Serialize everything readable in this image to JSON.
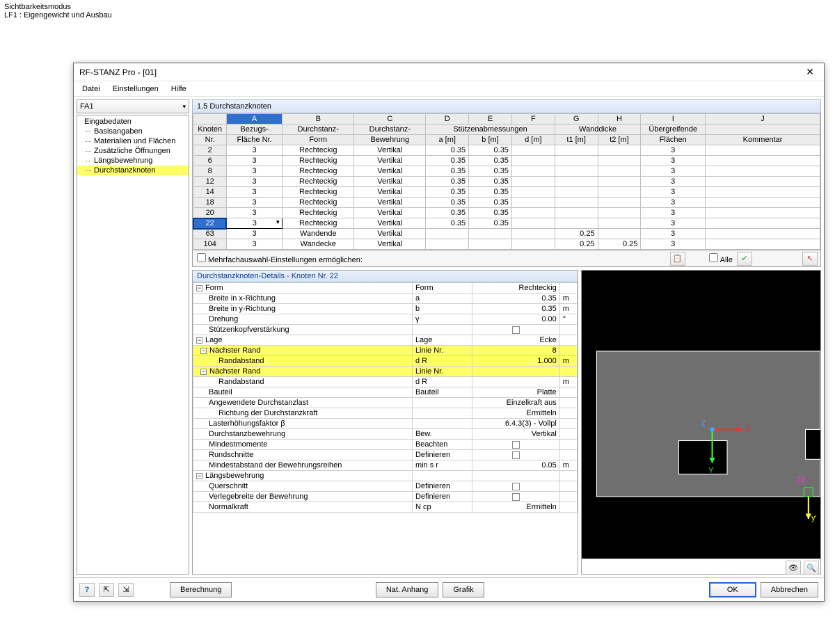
{
  "background": {
    "line1": "Sichtbarkeitsmodus",
    "line2": "LF1 : Eigengewicht und Ausbau"
  },
  "window_title": "RF-STANZ Pro - [01]",
  "menu": {
    "datei": "Datei",
    "einstellungen": "Einstellungen",
    "hilfe": "Hilfe"
  },
  "dropdown_label": "FA1",
  "tree": {
    "root": "Eingabedaten",
    "items": [
      "Basisangaben",
      "Materialien und Flächen",
      "Zusätzliche Öffnungen",
      "Längsbewehrung",
      "Durchstanzknoten"
    ],
    "highlight_index": 4
  },
  "section_title": "1.5 Durchstanzknoten",
  "grid": {
    "col_letters": [
      "A",
      "B",
      "C",
      "D",
      "E",
      "F",
      "G",
      "H",
      "I",
      "J"
    ],
    "header1": [
      "Knoten",
      "Bezugs-",
      "Durchstanz-",
      "Durchstanz-",
      "Stützenabmessungen",
      "",
      "",
      "Wanddicke",
      "",
      "Übergreifende",
      ""
    ],
    "header2": [
      "Nr.",
      "Fläche Nr.",
      "Form",
      "Bewehrung",
      "a [m]",
      "b [m]",
      "d [m]",
      "t1 [m]",
      "t2 [m]",
      "Flächen",
      "Kommentar"
    ],
    "rows": [
      {
        "nr": "2",
        "bf": "3",
        "form": "Rechteckig",
        "bew": "Vertikal",
        "a": "0.35",
        "b": "0.35",
        "d": "",
        "t1": "",
        "t2": "",
        "fl": "3",
        "k": ""
      },
      {
        "nr": "6",
        "bf": "3",
        "form": "Rechteckig",
        "bew": "Vertikal",
        "a": "0.35",
        "b": "0.35",
        "d": "",
        "t1": "",
        "t2": "",
        "fl": "3",
        "k": ""
      },
      {
        "nr": "8",
        "bf": "3",
        "form": "Rechteckig",
        "bew": "Vertikal",
        "a": "0.35",
        "b": "0.35",
        "d": "",
        "t1": "",
        "t2": "",
        "fl": "3",
        "k": ""
      },
      {
        "nr": "12",
        "bf": "3",
        "form": "Rechteckig",
        "bew": "Vertikal",
        "a": "0.35",
        "b": "0.35",
        "d": "",
        "t1": "",
        "t2": "",
        "fl": "3",
        "k": ""
      },
      {
        "nr": "14",
        "bf": "3",
        "form": "Rechteckig",
        "bew": "Vertikal",
        "a": "0.35",
        "b": "0.35",
        "d": "",
        "t1": "",
        "t2": "",
        "fl": "3",
        "k": ""
      },
      {
        "nr": "18",
        "bf": "3",
        "form": "Rechteckig",
        "bew": "Vertikal",
        "a": "0.35",
        "b": "0.35",
        "d": "",
        "t1": "",
        "t2": "",
        "fl": "3",
        "k": ""
      },
      {
        "nr": "20",
        "bf": "3",
        "form": "Rechteckig",
        "bew": "Vertikal",
        "a": "0.35",
        "b": "0.35",
        "d": "",
        "t1": "",
        "t2": "",
        "fl": "3",
        "k": ""
      },
      {
        "nr": "22",
        "bf": "3",
        "form": "Rechteckig",
        "bew": "Vertikal",
        "a": "0.35",
        "b": "0.35",
        "d": "",
        "t1": "",
        "t2": "",
        "fl": "3",
        "k": "",
        "selected": true
      },
      {
        "nr": "63",
        "bf": "3",
        "form": "Wandende",
        "bew": "Vertikal",
        "a": "",
        "b": "",
        "d": "",
        "t1": "0.25",
        "t2": "",
        "fl": "3",
        "k": ""
      },
      {
        "nr": "104",
        "bf": "3",
        "form": "Wandecke",
        "bew": "Vertikal",
        "a": "",
        "b": "",
        "d": "",
        "t1": "0.25",
        "t2": "0.25",
        "fl": "3",
        "k": ""
      }
    ]
  },
  "strip": {
    "multi_label": "Mehrfachauswahl-Einstellungen ermöglichen:",
    "alle": "Alle"
  },
  "details": {
    "header": "Durchstanzknoten-Details - Knoten Nr.  22",
    "rows": [
      {
        "pm": "-",
        "l": "Form",
        "m": "Form",
        "r": "Rechteckig",
        "u": ""
      },
      {
        "ind": 1,
        "l": "Breite in x-Richtung",
        "m": "a",
        "r": "0.35",
        "u": "m"
      },
      {
        "ind": 1,
        "l": "Breite in y-Richtung",
        "m": "b",
        "r": "0.35",
        "u": "m"
      },
      {
        "ind": 1,
        "l": "Drehung",
        "m": "γ",
        "r": "0.00",
        "u": "°"
      },
      {
        "ind": 1,
        "l": "Stützenkopfverstärkung",
        "m": "",
        "r": "",
        "u": "",
        "chk": true
      },
      {
        "pm": "-",
        "l": "Lage",
        "m": "Lage",
        "r": "Ecke",
        "u": ""
      },
      {
        "pm": "-",
        "ind": 1,
        "l": "Nächster Rand",
        "m": "Linie Nr.",
        "r": "8",
        "u": "",
        "hl": true
      },
      {
        "ind": 2,
        "l": "Randabstand",
        "m": "d R",
        "r": "1.000",
        "u": "m",
        "hl": true
      },
      {
        "pm": "-",
        "ind": 1,
        "l": "Nächster Rand",
        "m": "Linie Nr.",
        "r": "",
        "u": "",
        "hl": true
      },
      {
        "ind": 2,
        "l": "Randabstand",
        "m": "d R",
        "r": "",
        "u": "m"
      },
      {
        "ind": 1,
        "l": "Bauteil",
        "m": "Bauteil",
        "r": "Platte",
        "u": ""
      },
      {
        "ind": 1,
        "l": "Angewendete Durchstanzlast",
        "m": "",
        "r": "Einzelkraft aus",
        "u": ""
      },
      {
        "ind": 2,
        "l": "Richtung der Durchstanzkraft",
        "m": "",
        "r": "Ermitteln",
        "u": ""
      },
      {
        "ind": 1,
        "l": "Lasterhöhungsfaktor β",
        "m": "",
        "r": "6.4.3(3) - Vollpl",
        "u": ""
      },
      {
        "ind": 1,
        "l": "Durchstanzbewehrung",
        "m": "Bew.",
        "r": "Vertikal",
        "u": ""
      },
      {
        "ind": 1,
        "l": "Mindestmomente",
        "m": "Beachten",
        "r": "",
        "u": "",
        "chk": true
      },
      {
        "ind": 1,
        "l": "Rundschnitte",
        "m": "Definieren",
        "r": "",
        "u": "",
        "chk": true
      },
      {
        "ind": 1,
        "l": "Mindestabstand der Bewehrungsreihen",
        "m": "min s r",
        "r": "0.05",
        "u": "m"
      },
      {
        "pm": "-",
        "l": "Längsbewehrung",
        "m": "",
        "r": "",
        "u": ""
      },
      {
        "ind": 1,
        "l": "Querschnitt",
        "m": "Definieren",
        "r": "",
        "u": "",
        "chk": true
      },
      {
        "ind": 1,
        "l": "Verlegebreite der Bewehrung",
        "m": "Definieren",
        "r": "",
        "u": "",
        "chk": true
      },
      {
        "ind": 1,
        "l": "Normalkraft",
        "m": "N cp",
        "r": "Ermitteln",
        "u": ""
      }
    ]
  },
  "preview": {
    "node_label": "22",
    "x_label": "X",
    "y_label": "Y",
    "z_label": "Z",
    "yprime_label": "y'",
    "colors": {
      "bg": "#000000",
      "slab": "#6f6f6f",
      "edge": "#ffffff",
      "x": "#ff2a2a",
      "y": "#2aff2a",
      "z": "#4aa3ff",
      "label": "#ff33cc",
      "yprime": "#ffff33"
    }
  },
  "footer": {
    "berechnung": "Berechnung",
    "nat_anhang": "Nat. Anhang",
    "grafik": "Grafik",
    "ok": "OK",
    "abbrechen": "Abbrechen"
  }
}
